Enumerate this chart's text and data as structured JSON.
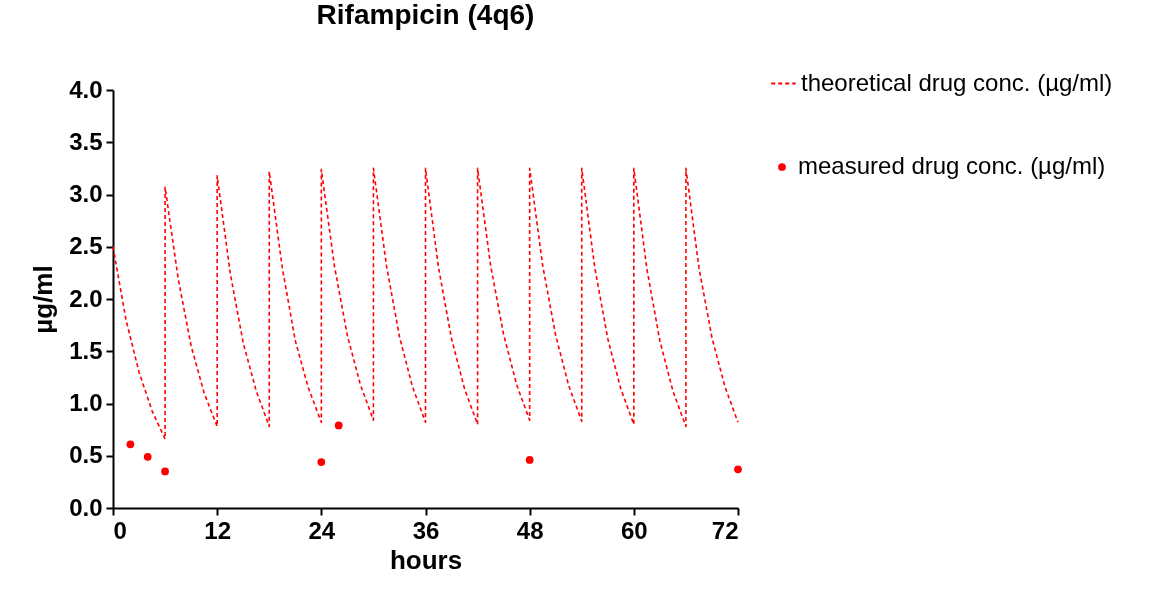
{
  "chart_data": {
    "type": "line",
    "title": "Rifampicin (4q6)",
    "xlabel": "hours",
    "ylabel": "µg/ml",
    "xlim": [
      0,
      72
    ],
    "xticks": [
      0,
      12,
      24,
      36,
      48,
      60,
      72
    ],
    "ylim": [
      0,
      4
    ],
    "yticks": [
      {
        "value": 0,
        "label": "0.0"
      },
      {
        "value": 0.5,
        "label": "0.5"
      },
      {
        "value": 1,
        "label": "1.0"
      },
      {
        "value": 1.5,
        "label": "1.5"
      },
      {
        "value": 2,
        "label": "2.0"
      },
      {
        "value": 2.5,
        "label": "2.5"
      },
      {
        "value": 3,
        "label": "3.0"
      },
      {
        "value": 3.5,
        "label": "3.5"
      },
      {
        "value": 4,
        "label": "4.0"
      }
    ],
    "grid": false,
    "legend": "top right",
    "series": [
      {
        "name": "theoretical drug conc. (µg/ml)",
        "line_style": "dashed",
        "color": "#ff0000",
        "x": [
          0,
          1.5,
          3,
          4.5,
          6,
          6,
          7.5,
          9,
          10.5,
          12,
          12,
          13.5,
          15,
          16.5,
          18,
          18,
          19.5,
          21,
          22.5,
          24,
          24,
          25.5,
          27,
          28.5,
          30,
          30,
          31.5,
          33,
          34.5,
          36,
          36,
          37.5,
          39,
          40.5,
          42,
          42,
          43.5,
          45,
          46.5,
          48,
          48,
          49.5,
          51,
          52.5,
          54,
          54,
          55.5,
          57,
          58.5,
          60,
          60,
          61.5,
          63,
          64.5,
          66,
          66,
          67.5,
          69,
          70.5,
          72
        ],
        "values": [
          2.5,
          1.8,
          1.3,
          0.93,
          0.66,
          3.07,
          2.2,
          1.55,
          1.1,
          0.78,
          3.18,
          2.25,
          1.58,
          1.12,
          0.78,
          3.22,
          2.3,
          1.6,
          1.15,
          0.82,
          3.24,
          2.32,
          1.65,
          1.18,
          0.84,
          3.25,
          2.32,
          1.64,
          1.16,
          0.82,
          3.25,
          2.3,
          1.62,
          1.14,
          0.8,
          3.25,
          2.32,
          1.66,
          1.18,
          0.84,
          3.25,
          2.32,
          1.65,
          1.17,
          0.83,
          3.25,
          2.3,
          1.62,
          1.14,
          0.8,
          3.25,
          2.29,
          1.6,
          1.12,
          0.78,
          3.25,
          2.3,
          1.63,
          1.16,
          0.82
        ]
      },
      {
        "name": "measured drug conc. (µg/ml)",
        "type": "scatter",
        "marker": "circle",
        "color": "#ff0000",
        "x": [
          2,
          4,
          6,
          24,
          26,
          48,
          72
        ],
        "values": [
          0.61,
          0.49,
          0.35,
          0.44,
          0.79,
          0.46,
          0.37
        ]
      }
    ]
  }
}
